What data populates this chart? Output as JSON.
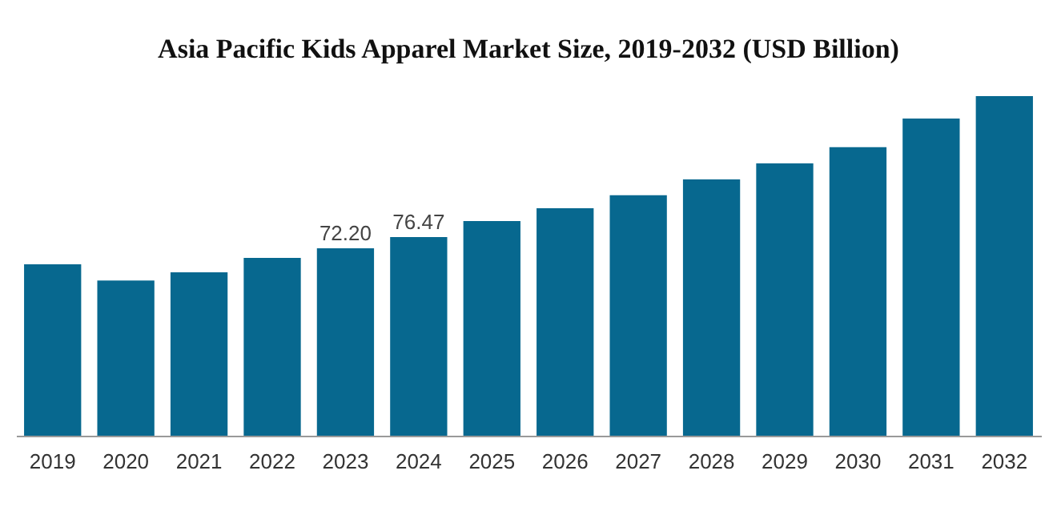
{
  "chart_data": {
    "type": "bar",
    "title": "Asia Pacific Kids Apparel Market Size, 2019-2032 (USD Billion)",
    "categories": [
      "2019",
      "2020",
      "2021",
      "2022",
      "2023",
      "2024",
      "2025",
      "2026",
      "2027",
      "2028",
      "2029",
      "2030",
      "2031",
      "2032"
    ],
    "values": [
      66.0,
      59.8,
      62.9,
      68.5,
      72.2,
      76.47,
      82.7,
      87.6,
      92.6,
      98.7,
      104.9,
      111.1,
      122.2,
      130.8
    ],
    "value_labels": [
      null,
      null,
      null,
      null,
      "72.20",
      "76.47",
      null,
      null,
      null,
      null,
      null,
      null,
      null,
      null
    ],
    "color": "#07688f",
    "grid": false,
    "tick_labels": "x"
  }
}
